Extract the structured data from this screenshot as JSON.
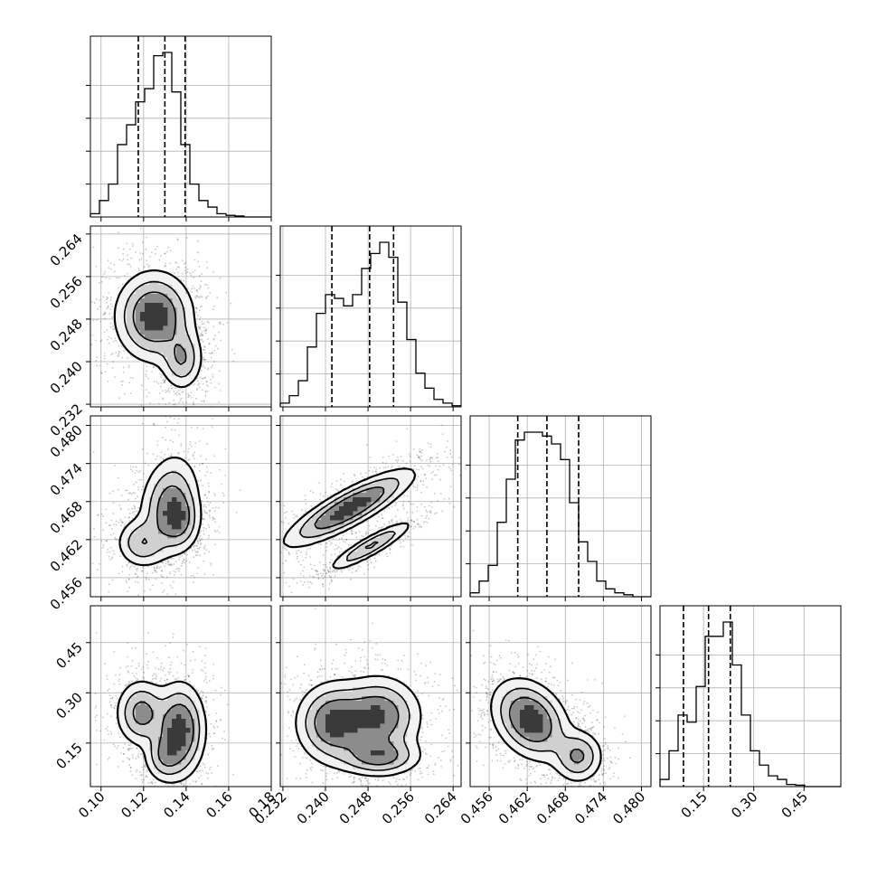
{
  "chart_data": {
    "type": "corner",
    "parameters": 4,
    "quantiles": [
      0.16,
      0.5,
      0.84
    ],
    "grid": true,
    "axes": [
      {
        "index": 0,
        "range": [
          0.095,
          0.18
        ],
        "ticks": [
          0.1,
          0.12,
          0.14,
          0.16,
          0.18
        ],
        "tick_labels": [
          "0.10",
          "0.12",
          "0.14",
          "0.16",
          "0.18"
        ],
        "quantile_values": [
          0.1175,
          0.13,
          0.1395
        ],
        "hist_bin_width": 0.00425,
        "hist_counts": [
          1,
          5,
          10,
          22,
          28,
          35,
          39,
          49,
          50,
          38,
          22,
          10,
          5,
          3,
          1,
          0.5,
          0.3,
          0,
          0,
          0
        ]
      },
      {
        "index": 1,
        "range": [
          0.2315,
          0.2655
        ],
        "ticks": [
          0.232,
          0.24,
          0.248,
          0.256,
          0.264
        ],
        "tick_labels": [
          "0.232",
          "0.240",
          "0.248",
          "0.256",
          "0.264"
        ],
        "quantile_values": [
          0.2412,
          0.2483,
          0.2528
        ],
        "hist_bin_width": 0.0017,
        "hist_counts": [
          1,
          3,
          7,
          16,
          25,
          30,
          29,
          27,
          30,
          37,
          41,
          44,
          40,
          28,
          18,
          9,
          5,
          2,
          1,
          0.3
        ]
      },
      {
        "index": 2,
        "range": [
          0.453,
          0.4815
        ],
        "ticks": [
          0.456,
          0.462,
          0.468,
          0.474,
          0.48
        ],
        "tick_labels": [
          "0.456",
          "0.462",
          "0.468",
          "0.474",
          "0.480"
        ],
        "quantile_values": [
          0.4605,
          0.4651,
          0.4701
        ],
        "hist_bin_width": 0.001425,
        "hist_counts": [
          1,
          4,
          8,
          19,
          30,
          40,
          42,
          42,
          41,
          39,
          35,
          24,
          14,
          9,
          4,
          2,
          1,
          0.5,
          0,
          0
        ]
      },
      {
        "index": 3,
        "range": [
          0.02,
          0.56
        ],
        "ticks": [
          0.15,
          0.3,
          0.45
        ],
        "tick_labels": [
          "0.15",
          "0.30",
          "0.45"
        ],
        "quantile_values": [
          0.09,
          0.165,
          0.23
        ],
        "hist_bin_width": 0.027,
        "hist_counts": [
          1,
          5,
          10,
          9,
          14,
          21,
          21,
          23,
          17,
          10,
          5,
          3,
          1.5,
          1,
          0.3,
          0.2,
          0,
          0,
          0,
          0
        ]
      }
    ],
    "blobs": {
      "1_0": [
        [
          0.125,
          0.2485,
          0.009,
          0.0042,
          0.0,
          1.0
        ],
        [
          0.138,
          0.2405,
          0.005,
          0.003,
          0.0,
          0.55
        ]
      ],
      "2_0": [
        [
          0.132,
          0.4675,
          0.007,
          0.004,
          0.2,
          0.9
        ],
        [
          0.137,
          0.465,
          0.005,
          0.0025,
          0.0,
          0.7
        ],
        [
          0.119,
          0.4615,
          0.006,
          0.002,
          0.0,
          0.65
        ]
      ],
      "2_1": [
        [
          0.2445,
          0.467,
          0.006,
          0.003,
          0.85,
          1.0
        ],
        [
          0.2485,
          0.461,
          0.004,
          0.002,
          0.9,
          0.6
        ]
      ],
      "3_0": [
        [
          0.137,
          0.19,
          0.006,
          0.07,
          0.0,
          1.0
        ],
        [
          0.119,
          0.24,
          0.006,
          0.05,
          0.0,
          0.7
        ],
        [
          0.13,
          0.11,
          0.005,
          0.04,
          0.0,
          0.5
        ]
      ],
      "3_1": [
        [
          0.2415,
          0.21,
          0.0035,
          0.06,
          0.0,
          0.9
        ],
        [
          0.25,
          0.23,
          0.004,
          0.06,
          0.0,
          0.85
        ],
        [
          0.25,
          0.11,
          0.004,
          0.03,
          0.0,
          0.7
        ]
      ],
      "3_2": [
        [
          0.4625,
          0.22,
          0.003,
          0.06,
          -0.3,
          1.0
        ],
        [
          0.47,
          0.11,
          0.002,
          0.04,
          0.0,
          0.6
        ]
      ]
    }
  }
}
